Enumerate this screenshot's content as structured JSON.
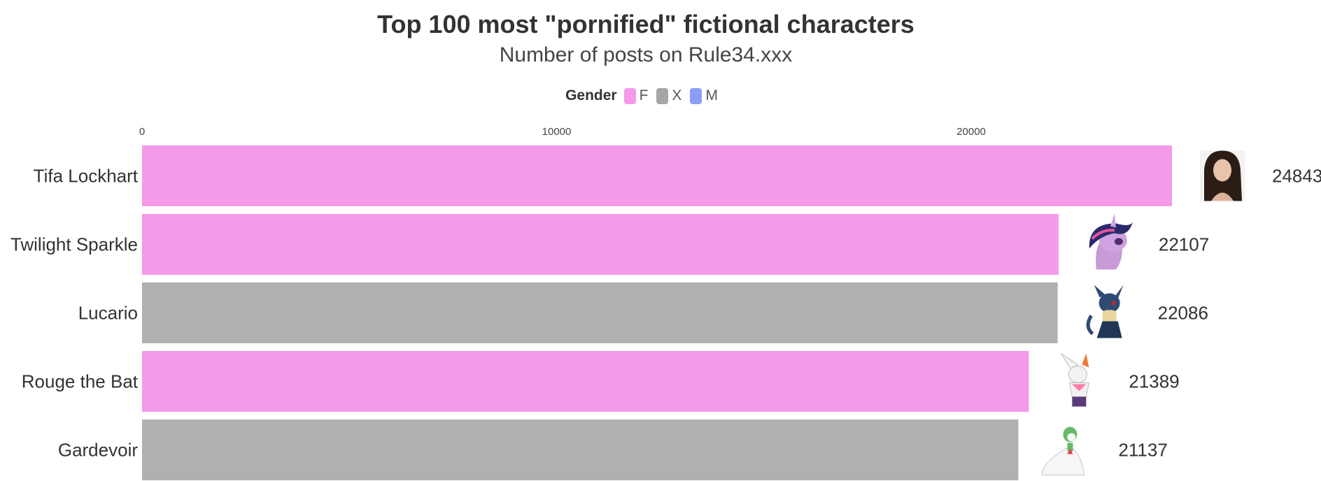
{
  "chart_data": {
    "type": "bar",
    "orientation": "horizontal",
    "title": "Top 100 most \"pornified\" fictional characters",
    "subtitle": "Number of posts on Rule34.xxx",
    "legend": {
      "title": "Gender",
      "position": "top-center",
      "entries": [
        {
          "label": "F",
          "color": "#f599e9"
        },
        {
          "label": "X",
          "color": "#a6a6a6"
        },
        {
          "label": "M",
          "color": "#8c9ef5"
        }
      ]
    },
    "x_ticks": [
      "0",
      "10000",
      "20000"
    ],
    "xlim": [
      0,
      24843
    ],
    "grid": false,
    "categories": [
      "Tifa Lockhart",
      "Twilight Sparkle",
      "Lucario",
      "Rouge the Bat",
      "Gardevoir"
    ],
    "values": [
      24843,
      22107,
      22086,
      21389,
      21137
    ],
    "genders": [
      "F",
      "F",
      "X",
      "F",
      "X"
    ],
    "bar_colors": {
      "F": "#f599e9",
      "X": "#b0b0b0",
      "M": "#8c9ef5"
    },
    "icons": [
      "tifa-portrait-icon",
      "twilight-sparkle-icon",
      "lucario-icon",
      "rouge-the-bat-icon",
      "gardevoir-icon"
    ]
  }
}
